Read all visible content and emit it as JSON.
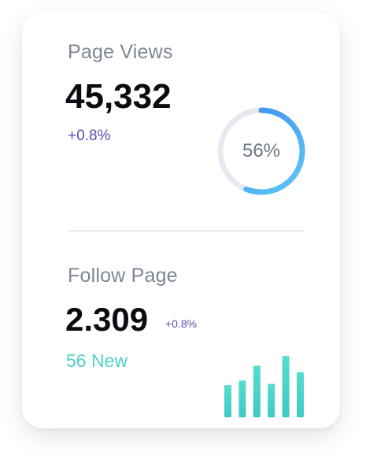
{
  "page_views": {
    "label": "Page Views",
    "value": "45,332",
    "change": "+0.8%",
    "progress_percent": 56,
    "progress_label": "56%"
  },
  "follow_page": {
    "label": "Follow Page",
    "value": "2.309",
    "change": "+0.8%",
    "new_label": "56 New",
    "bar_levels": [
      0.5,
      0.57,
      0.8,
      0.52,
      0.95,
      0.7
    ]
  },
  "colors": {
    "ring_start": "#5ec9f5",
    "ring_end": "#3f86f0",
    "ring_track": "#e8e9f0",
    "bar_top": "#56ddd0",
    "bar_bottom": "#3ec9c2"
  }
}
